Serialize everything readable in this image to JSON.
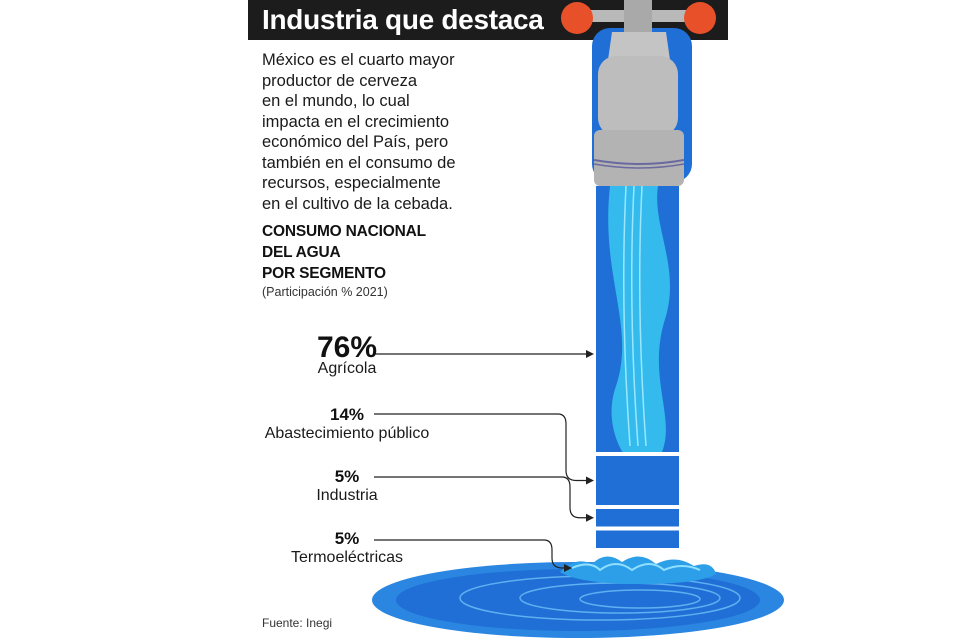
{
  "header": {
    "title": "Industria que destaca"
  },
  "intro": {
    "lines": [
      "México es el cuarto mayor",
      "productor de cerveza",
      "en el mundo, lo cual",
      "impacta en el crecimiento",
      "económico del País, pero",
      "también en el consumo de",
      "recursos, especialmente",
      "en el cultivo de la cebada."
    ]
  },
  "chart_data": {
    "type": "bar",
    "title_lines": [
      "CONSUMO NACIONAL",
      "DEL AGUA",
      "POR SEGMENTO"
    ],
    "subtitle": "(Participación % 2021)",
    "categories": [
      "Agrícola",
      "Abastecimiento público",
      "Industria",
      "Termoeléctricas"
    ],
    "values": [
      76,
      14,
      5,
      5
    ],
    "value_labels": [
      "76%",
      "14%",
      "5%",
      "5%"
    ],
    "unit": "%",
    "legend": "none",
    "grid": false
  },
  "source": "Fuente: Inegi",
  "colors": {
    "header_bg": "#1c1c1c",
    "water_dark": "#1f6fd6",
    "water_light": "#38c8f0",
    "faucet_gray": "#b9b9b9",
    "knob_orange": "#e8502a"
  },
  "icons": [
    "faucet-icon",
    "water-splash-icon"
  ]
}
